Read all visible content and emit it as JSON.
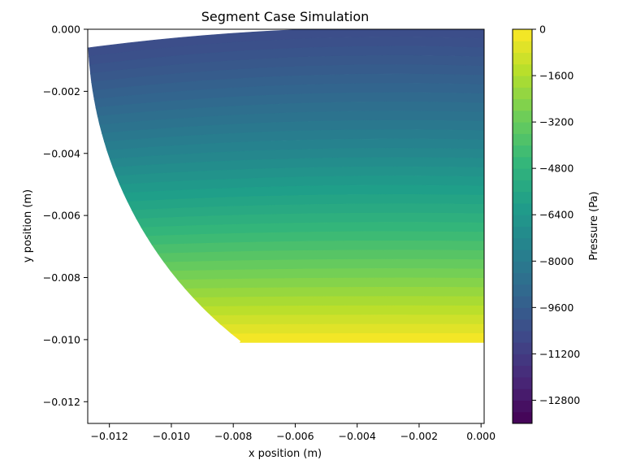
{
  "chart_data": {
    "type": "heatmap",
    "subtype": "filled-contour",
    "title": "Segment Case Simulation",
    "xlabel": "x position (m)",
    "ylabel": "y position (m)",
    "xlim": [
      -0.0127,
      0.0001
    ],
    "ylim": [
      -0.0127,
      0.0
    ],
    "x_ticks": [
      -0.012,
      -0.01,
      -0.008,
      -0.006,
      -0.004,
      -0.002,
      0.0
    ],
    "x_tick_labels": [
      "−0.012",
      "−0.010",
      "−0.008",
      "−0.006",
      "−0.004",
      "−0.002",
      "0.000"
    ],
    "y_ticks": [
      0.0,
      -0.002,
      -0.004,
      -0.006,
      -0.008,
      -0.01,
      -0.012
    ],
    "y_tick_labels": [
      "0.000",
      "−0.002",
      "−0.004",
      "−0.006",
      "−0.008",
      "−0.010",
      "−0.012"
    ],
    "domain": {
      "boundary_center": [
        0.0,
        0.0
      ],
      "boundary_radius": 0.0127,
      "bottom_y": -0.0101,
      "corner": [
        -0.0078,
        -0.0101
      ]
    },
    "pressure_field": {
      "min_pa": -13600,
      "max_pa": 0,
      "value_at_top": -10400,
      "value_at_bottom": 0,
      "levels": 34
    },
    "colorbar": {
      "label": "Pressure (Pa)",
      "range": [
        -13600,
        0
      ],
      "ticks": [
        0,
        -1600,
        -3200,
        -4800,
        -6400,
        -8000,
        -9600,
        -11200,
        -12800
      ],
      "tick_labels": [
        "0",
        "−1600",
        "−3200",
        "−4800",
        "−6400",
        "−8000",
        "−9600",
        "−11200",
        "−12800"
      ],
      "colormap": "viridis"
    },
    "grid": false,
    "legend": "none"
  }
}
